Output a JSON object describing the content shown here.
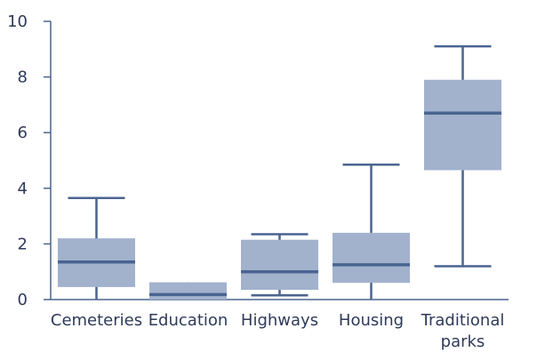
{
  "chart_data": {
    "type": "box",
    "title": "",
    "xlabel": "",
    "ylabel": "",
    "ylim": [
      0,
      10
    ],
    "yticks": [
      0,
      2,
      4,
      6,
      8,
      10
    ],
    "grid": false,
    "legend": "none",
    "colors": {
      "box_fill": "#a2b2cd",
      "median": "#4a6491",
      "whisker": "#4a6491",
      "axis": "#4a6491",
      "text": "#2e3a59"
    },
    "categories": [
      {
        "label_lines": [
          "Cemeteries"
        ],
        "min": 0.0,
        "q1": 0.45,
        "median": 1.35,
        "q3": 2.2,
        "max": 3.65
      },
      {
        "label_lines": [
          "Education"
        ],
        "min": 0.0,
        "q1": 0.0,
        "median": 0.18,
        "q3": 0.62,
        "max": 0.62
      },
      {
        "label_lines": [
          "Highways"
        ],
        "min": 0.15,
        "q1": 0.35,
        "median": 1.0,
        "q3": 2.15,
        "max": 2.35
      },
      {
        "label_lines": [
          "Housing"
        ],
        "min": 0.0,
        "q1": 0.6,
        "median": 1.25,
        "q3": 2.4,
        "max": 4.85
      },
      {
        "label_lines": [
          "Traditional",
          "parks"
        ],
        "min": 1.2,
        "q1": 4.65,
        "median": 6.7,
        "q3": 7.9,
        "max": 9.1
      }
    ]
  }
}
